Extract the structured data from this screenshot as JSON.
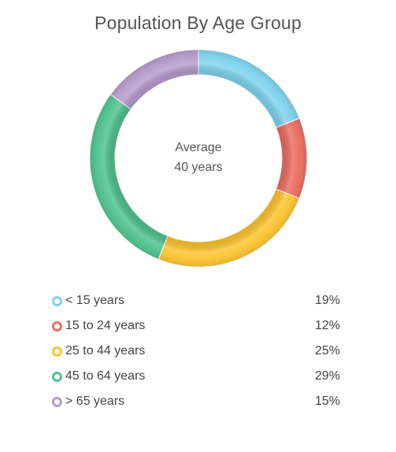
{
  "chart_data": {
    "type": "pie",
    "title": "Population By Age Group",
    "center_label": {
      "line1": "Average",
      "line2": "40 years"
    },
    "categories": [
      "< 15 years",
      "15 to 24 years",
      "25 to 44 years",
      "45 to 64 years",
      "> 65 years"
    ],
    "values": [
      19,
      12,
      25,
      29,
      15
    ],
    "value_labels": [
      "19%",
      "12%",
      "25%",
      "29%",
      "15%"
    ],
    "colors": [
      "#7fd3ee",
      "#ea6d62",
      "#fcc430",
      "#4fc28f",
      "#b69bcc"
    ],
    "legend": "bottom",
    "grid": false
  }
}
